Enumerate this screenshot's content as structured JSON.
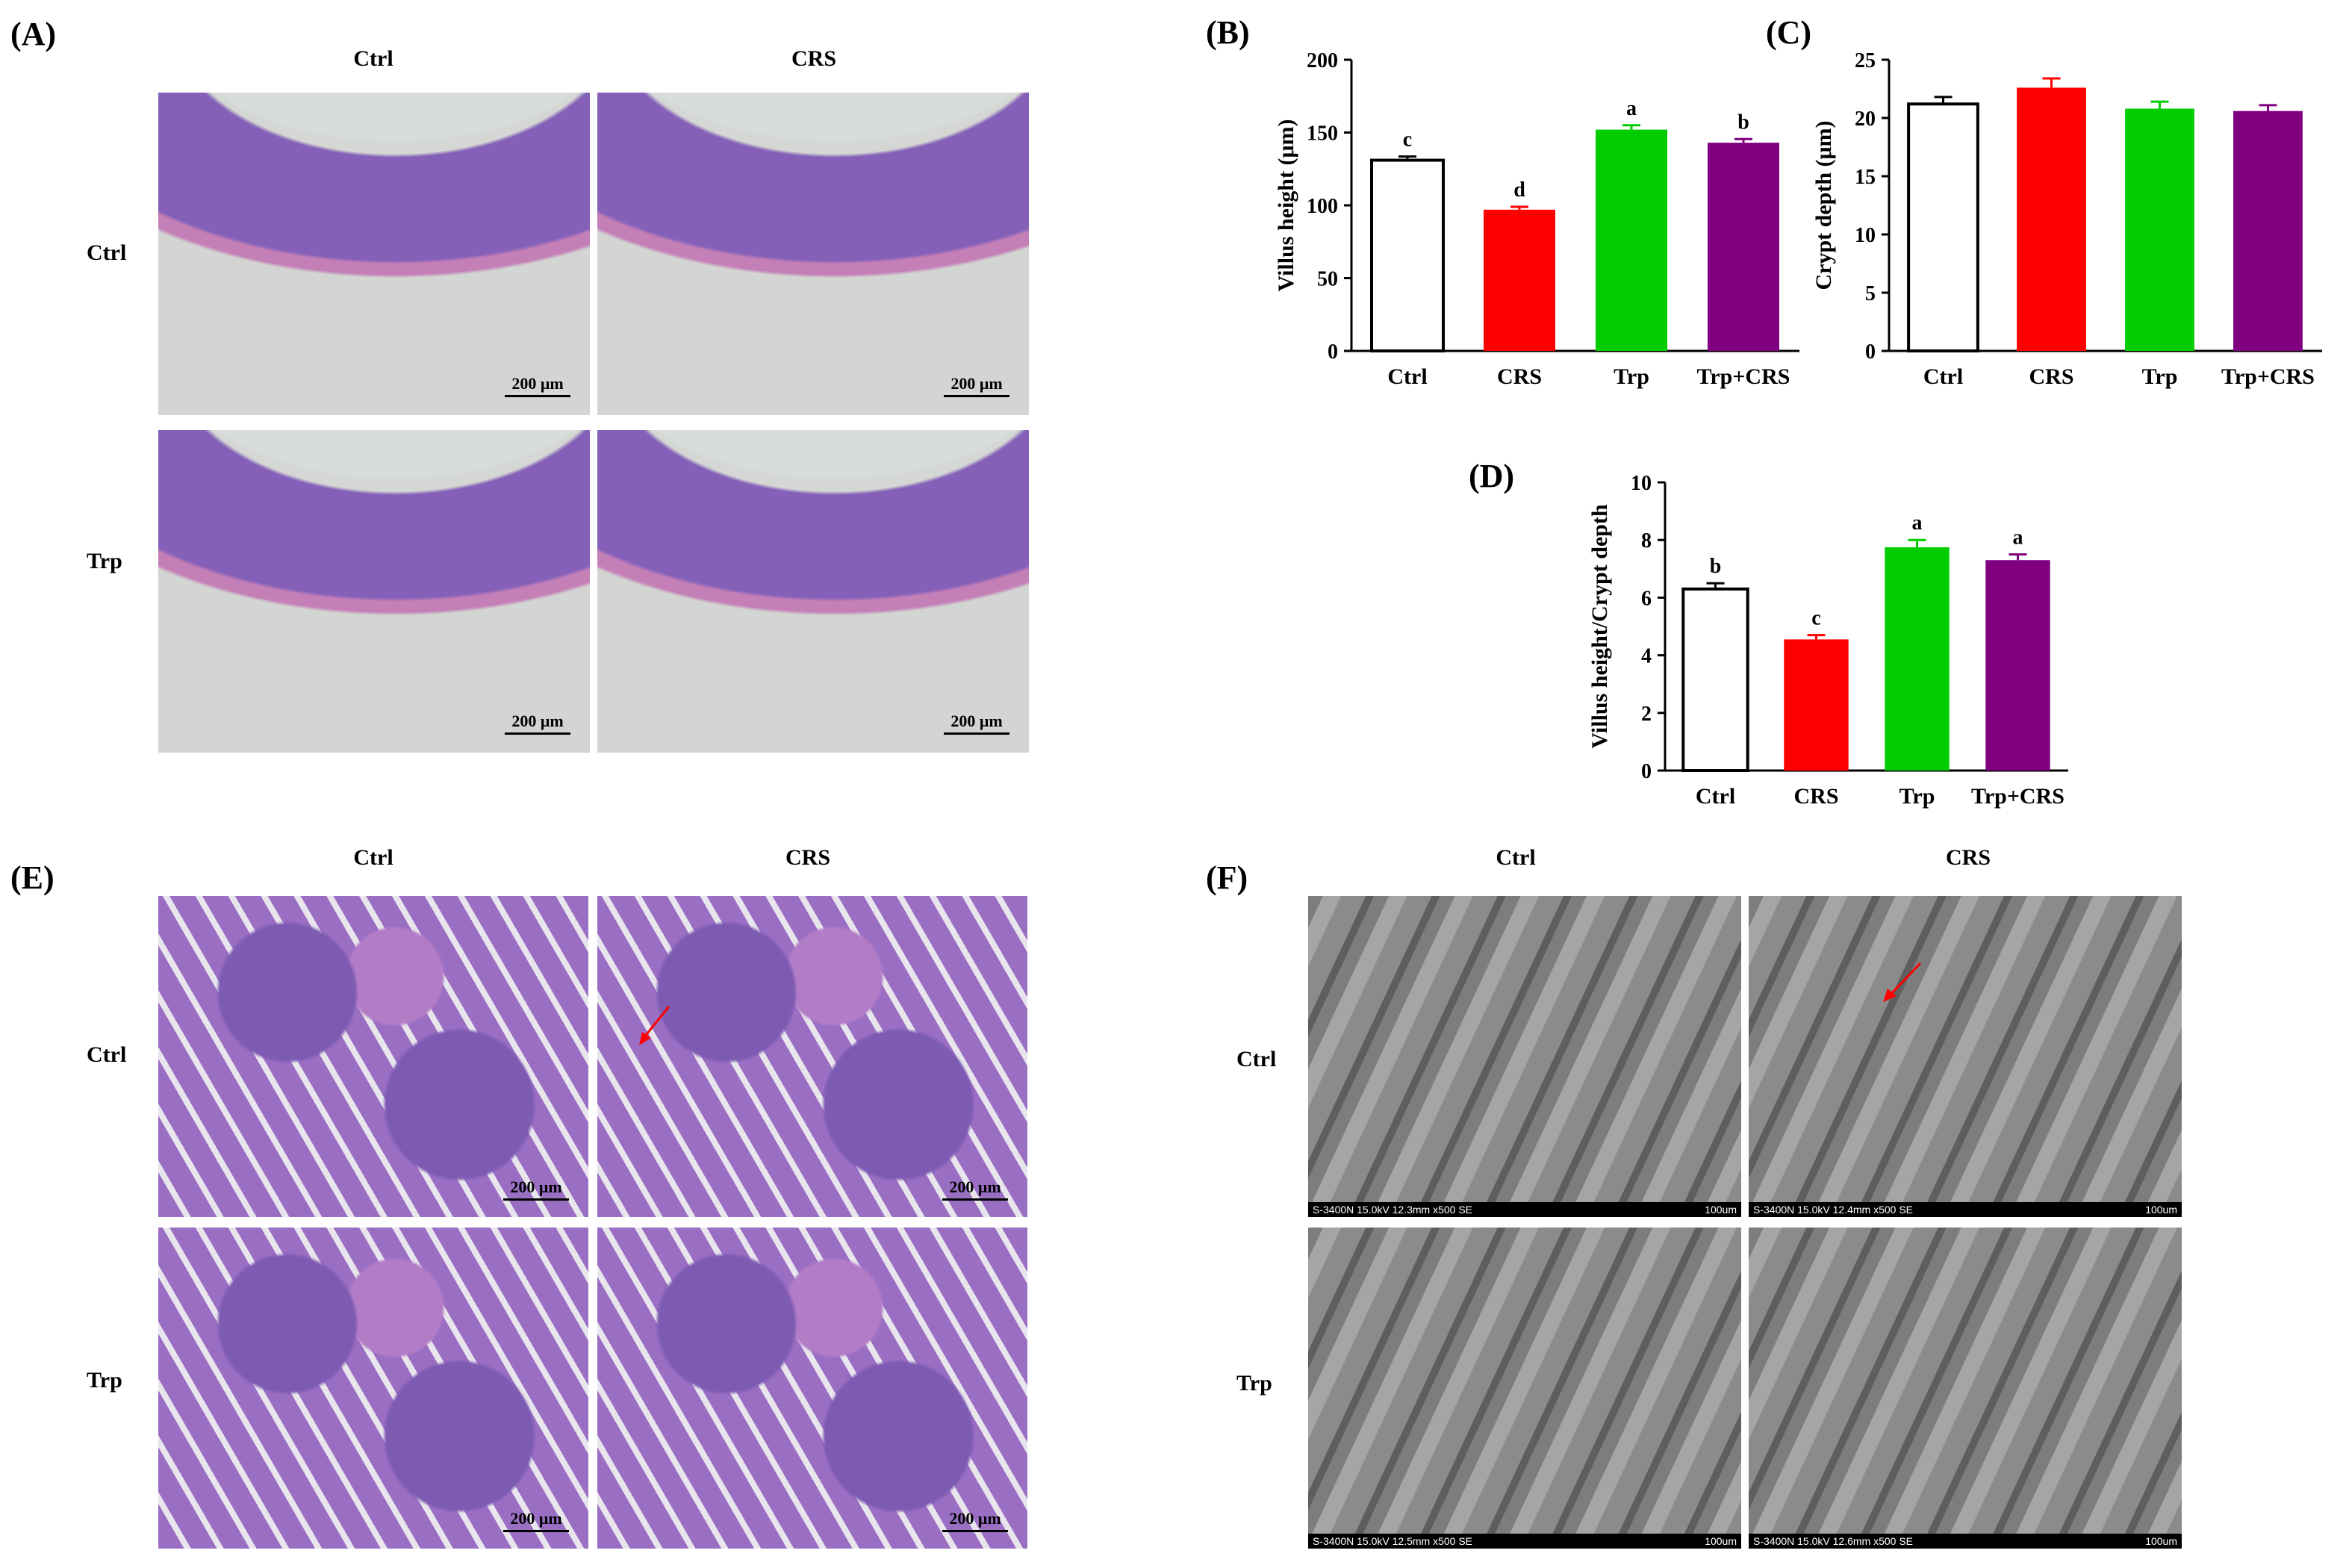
{
  "panels": {
    "A": {
      "label": "(A)",
      "col_labels": [
        "Ctrl",
        "CRS"
      ],
      "row_labels": [
        "Ctrl",
        "Trp"
      ],
      "scale_bars": [
        "200 μm",
        "200 μm",
        "200 μm",
        "200 μm"
      ]
    },
    "B": {
      "label": "(B)"
    },
    "C": {
      "label": "(C)"
    },
    "D": {
      "label": "(D)"
    },
    "E": {
      "label": "(E)",
      "col_labels": [
        "Ctrl",
        "CRS"
      ],
      "row_labels": [
        "Ctrl",
        "Trp"
      ],
      "scale_bars": [
        "200 μm",
        "200 μm",
        "200 μm",
        "200 μm"
      ]
    },
    "F": {
      "label": "(F)",
      "col_labels": [
        "Ctrl",
        "CRS"
      ],
      "row_labels": [
        "Ctrl",
        "Trp"
      ],
      "sem_info": [
        "S-3400N 15.0kV 12.3mm x500 SE",
        "S-3400N 15.0kV 12.4mm x500 SE",
        "S-3400N 15.0kV 12.5mm x500 SE",
        "S-3400N 15.0kV 12.6mm x500 SE"
      ],
      "sem_scale": "100um"
    }
  },
  "colors": {
    "Ctrl": "#ffffff",
    "CRS": "#ff0000",
    "Trp": "#00cc00",
    "Trp+CRS": "#800080"
  },
  "chart_data": [
    {
      "panel": "B",
      "type": "bar",
      "categories": [
        "Ctrl",
        "CRS",
        "Trp",
        "Trp+CRS"
      ],
      "values": [
        131,
        97,
        152,
        143
      ],
      "errors": [
        2.5,
        2,
        3,
        2.5
      ],
      "letters": [
        "c",
        "d",
        "a",
        "b"
      ],
      "ylabel": "Villus  height (μm)",
      "ylim": [
        0,
        200
      ],
      "yticks": [
        0,
        50,
        100,
        150,
        200
      ]
    },
    {
      "panel": "C",
      "type": "bar",
      "categories": [
        "Ctrl",
        "CRS",
        "Trp",
        "Trp+CRS"
      ],
      "values": [
        21.2,
        22.6,
        20.8,
        20.6
      ],
      "errors": [
        0.6,
        0.8,
        0.6,
        0.5
      ],
      "letters": [],
      "ylabel": "Crypt depth (μm)",
      "ylim": [
        0,
        25
      ],
      "yticks": [
        0,
        5,
        10,
        15,
        20,
        25
      ]
    },
    {
      "panel": "D",
      "type": "bar",
      "categories": [
        "Ctrl",
        "CRS",
        "Trp",
        "Trp+CRS"
      ],
      "values": [
        6.3,
        4.55,
        7.75,
        7.3
      ],
      "errors": [
        0.2,
        0.15,
        0.25,
        0.2
      ],
      "letters": [
        "b",
        "c",
        "a",
        "a"
      ],
      "ylabel": "Villus  height/Crypt depth",
      "ylim": [
        0,
        10
      ],
      "yticks": [
        0,
        2,
        4,
        6,
        8,
        10
      ]
    }
  ]
}
